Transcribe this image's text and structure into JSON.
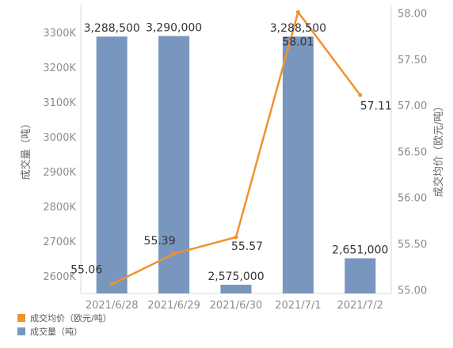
{
  "chart_data": {
    "type": "bar+line",
    "categories": [
      "2021/6/28",
      "2021/6/29",
      "2021/6/30",
      "2021/7/1",
      "2021/7/2"
    ],
    "series": [
      {
        "name": "成交量（吨）",
        "type": "bar",
        "axis": "left",
        "values": [
          3288500,
          3290000,
          2575000,
          3288500,
          2651000
        ],
        "labels": [
          "3,288,500",
          "3,290,000",
          "2,575,000",
          "3,288,500",
          "2,651,000"
        ],
        "color": "#7896be"
      },
      {
        "name": "成交均价（欧元/吨）",
        "type": "line",
        "axis": "right",
        "values": [
          55.06,
          55.39,
          55.57,
          58.01,
          57.11
        ],
        "labels": [
          "55.06",
          "55.39",
          "55.57",
          "58.01",
          "57.11"
        ],
        "color": "#f0922e"
      }
    ],
    "ylabel_left": "成交量（吨）",
    "ylabel_right": "成交均价（欧元/吨）",
    "ylim_left": [
      2550000,
      3380000
    ],
    "yticks_left": [
      2600000,
      2700000,
      2800000,
      2900000,
      3000000,
      3100000,
      3200000,
      3300000
    ],
    "ytick_labels_left": [
      "2600K",
      "2700K",
      "2800K",
      "2900K",
      "3000K",
      "3100K",
      "3200K",
      "3300K"
    ],
    "ylim_right": [
      54.96,
      58.09
    ],
    "yticks_right": [
      55.0,
      55.5,
      56.0,
      56.5,
      57.0,
      57.5,
      58.0
    ],
    "ytick_labels_right": [
      "55.00",
      "55.50",
      "56.00",
      "56.50",
      "57.00",
      "57.50",
      "58.00"
    ],
    "grid": false,
    "legend_position": "bottom-left",
    "legend": [
      {
        "label": "成交均价（欧元/吨）",
        "color": "#f0922e"
      },
      {
        "label": "成交量（吨）",
        "color": "#7896be"
      }
    ]
  }
}
